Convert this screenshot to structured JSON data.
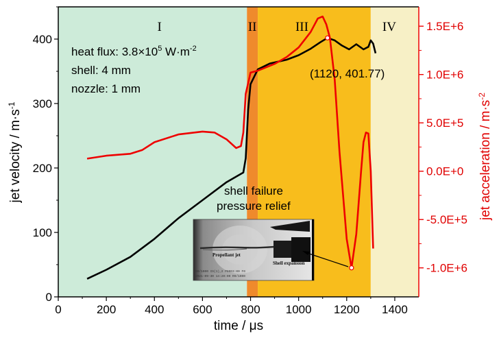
{
  "chart_data": {
    "type": "line",
    "xlabel": "time / μs",
    "ylabel_left": "jet velocity / m·s",
    "ylabel_left_sup": "-1",
    "ylabel_right": "jet acceleration / m·s",
    "ylabel_right_sup": "-2",
    "xlim": [
      0,
      1500
    ],
    "ylim_left": [
      0,
      450
    ],
    "ylim_right": [
      -1300000.0,
      1700000.0
    ],
    "x_ticks": [
      "0",
      "200",
      "400",
      "600",
      "800",
      "1000",
      "1200",
      "1400"
    ],
    "y_left_ticks": [
      "0",
      "100",
      "200",
      "300",
      "400"
    ],
    "y_right_ticks": [
      {
        "value": -1000000.0,
        "label": "-1.0E+6"
      },
      {
        "value": -500000.0,
        "label": "-5.0E+5"
      },
      {
        "value": 0,
        "label": "0.0E+0"
      },
      {
        "value": 500000.0,
        "label": "5.0E+5"
      },
      {
        "value": 1000000.0,
        "label": "1.0E+6"
      },
      {
        "value": 1500000.0,
        "label": "1.5E+6"
      }
    ],
    "regions": [
      {
        "label": "I",
        "x_start": 0,
        "x_end": 785,
        "color": "#cdebd9"
      },
      {
        "label": "II",
        "x_start": 785,
        "x_end": 830,
        "color": "#ef8a2c"
      },
      {
        "label": "III",
        "x_start": 830,
        "x_end": 1300,
        "color": "#f8bd1c"
      },
      {
        "label": "IV",
        "x_start": 1300,
        "x_end": 1500,
        "color": "#f7f0c6"
      }
    ],
    "series": [
      {
        "axis": "left",
        "color": "#000000",
        "x": [
          120,
          200,
          300,
          400,
          500,
          600,
          700,
          770,
          780,
          790,
          800,
          830,
          880,
          950,
          1000,
          1050,
          1090,
          1120,
          1150,
          1180,
          1210,
          1240,
          1270,
          1290,
          1300,
          1310,
          1320
        ],
        "y": [
          28,
          42,
          62,
          90,
          122,
          150,
          178,
          193,
          215,
          290,
          330,
          353,
          362,
          368,
          375,
          385,
          395,
          401.77,
          398,
          390,
          384,
          392,
          384,
          388,
          398,
          393,
          378
        ]
      },
      {
        "axis": "right",
        "color": "#ee0000",
        "x": [
          120,
          200,
          300,
          350,
          400,
          500,
          600,
          650,
          700,
          740,
          760,
          770,
          780,
          800,
          830,
          870,
          900,
          950,
          1000,
          1050,
          1080,
          1100,
          1115,
          1130,
          1150,
          1170,
          1200,
          1220,
          1240,
          1260,
          1270,
          1280,
          1290,
          1300,
          1310
        ],
        "y": [
          130000,
          160000,
          180000,
          220000,
          300000,
          380000,
          410000,
          400000,
          330000,
          240000,
          260000,
          400000,
          800000,
          1020000,
          1040000,
          1080000,
          1110000,
          1180000,
          1280000,
          1440000,
          1580000,
          1600000,
          1520000,
          1380000,
          950000,
          200000,
          -700000,
          -1000000,
          -650000,
          0,
          300000,
          400000,
          390000,
          0,
          -800000
        ]
      }
    ],
    "annotations": [
      {
        "text": "(1120, 401.77)",
        "x": 1120,
        "y": 401.77
      },
      {
        "text": "shell failure"
      },
      {
        "text": "pressure relief"
      }
    ]
  },
  "info": {
    "heat_flux_prefix": "heat flux: 3.8×10",
    "heat_flux_exp": "5",
    "heat_flux_unit": " W·m",
    "heat_flux_unit_exp": "-2",
    "shell": "shell: 4 mm",
    "nozzle": "nozzle: 1 mm"
  },
  "inset": {
    "propellant_jet": "Propellant jet",
    "shell_expansion": "Shell expansion",
    "stamp_line1": "90/1000 IS(1),2 P0003:00 F0",
    "stamp_line2": "2021-09-30 14:20:00 R0/1000"
  }
}
